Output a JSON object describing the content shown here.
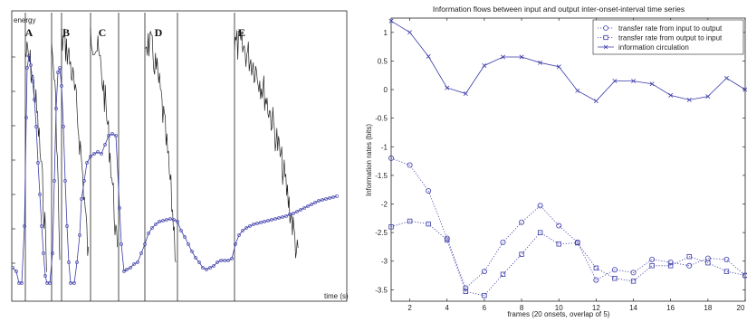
{
  "chart_data": [
    {
      "type": "line",
      "ylabel": "energy",
      "xlabel": "time (s)",
      "annotations": [
        "A",
        "B",
        "C",
        "D",
        "E"
      ]
    },
    {
      "type": "line",
      "title": "Information flows between input and output inter-onset-interval time series",
      "xlabel": "frames (20 onsets, overlap of 5)",
      "ylabel": "Information rates (bits)",
      "xlim": [
        1,
        20
      ],
      "ylim": [
        -3.7,
        1.25
      ],
      "x_ticks": [
        "2",
        "4",
        "6",
        "8",
        "10",
        "12",
        "14",
        "16",
        "18",
        "20"
      ],
      "y_ticks": [
        "1",
        "0.5",
        "0",
        "-0.5",
        "-1",
        "-1.5",
        "-2",
        "-2.5",
        "-3",
        "-3.5"
      ],
      "legend_position": "top-right",
      "x": [
        1,
        2,
        3,
        4,
        5,
        6,
        7,
        8,
        9,
        10,
        11,
        12,
        13,
        14,
        15,
        16,
        17,
        18,
        19,
        20
      ],
      "series": [
        {
          "name": "transfer rate from input to output",
          "marker": "circle",
          "values": [
            -1.2,
            -1.32,
            -1.77,
            -2.6,
            -3.47,
            -3.18,
            -2.67,
            -2.32,
            -2.03,
            -2.38,
            -2.67,
            -3.33,
            -3.15,
            -3.2,
            -2.97,
            -3.02,
            -3.08,
            -2.95,
            -2.97,
            -3.25
          ]
        },
        {
          "name": "transfer rate from output to input",
          "marker": "square",
          "values": [
            -2.4,
            -2.3,
            -2.35,
            -2.63,
            -3.53,
            -3.6,
            -3.23,
            -2.88,
            -2.5,
            -2.7,
            -2.68,
            -3.12,
            -3.3,
            -3.35,
            -3.08,
            -3.08,
            -2.92,
            -3.03,
            -3.18,
            -3.25
          ]
        },
        {
          "name": "information circulation",
          "marker": "x",
          "values": [
            1.2,
            1.0,
            0.58,
            0.03,
            -0.07,
            0.42,
            0.57,
            0.57,
            0.47,
            0.4,
            -0.02,
            -0.2,
            0.15,
            0.15,
            0.1,
            -0.1,
            -0.18,
            -0.12,
            0.2,
            0.0
          ]
        }
      ]
    }
  ],
  "colors": {
    "markers": "#3a3aa8",
    "circulation": "#3a3aa8",
    "signal": "#222222"
  }
}
